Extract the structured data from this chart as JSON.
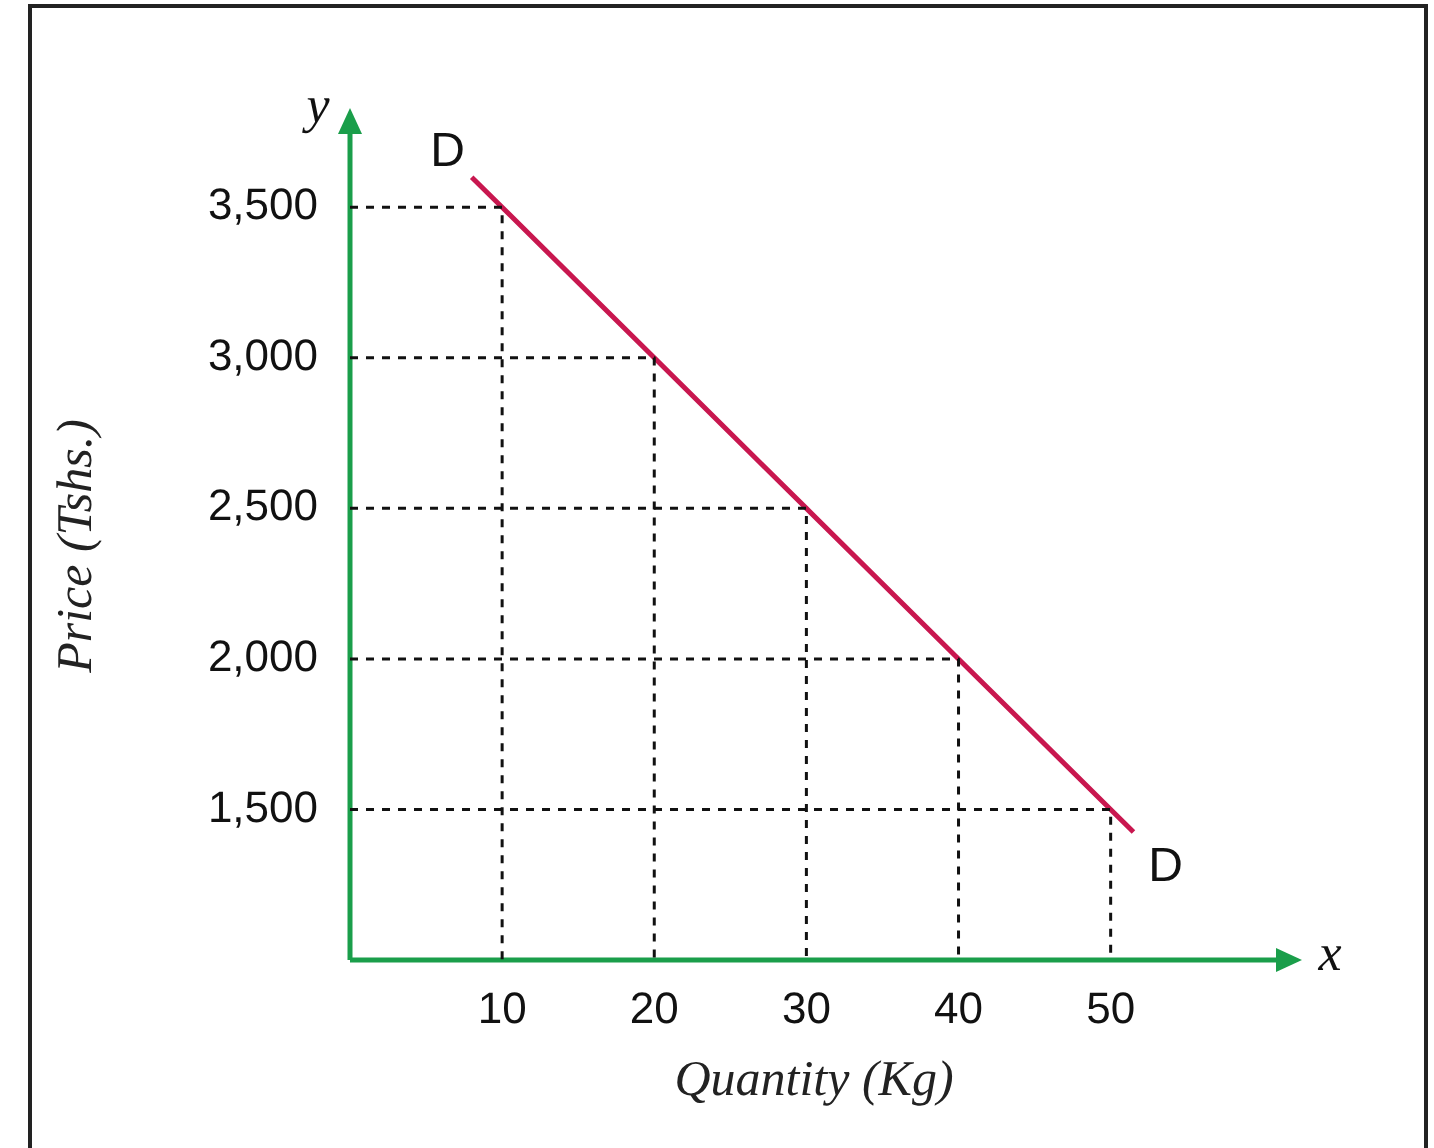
{
  "chart_data": {
    "type": "line",
    "xlabel": "Quantity (Kg)",
    "ylabel": "Price (Tshs.)",
    "series": [
      {
        "color": "#111111",
        "line_style": "dashed",
        "x": [
          0,
          10,
          10
        ],
        "values": [
          3500,
          3500,
          1000
        ]
      },
      {
        "color": "#111111",
        "line_style": "dashed",
        "x": [
          0,
          20,
          20
        ],
        "values": [
          3000,
          3000,
          1000
        ]
      },
      {
        "color": "#111111",
        "line_style": "dashed",
        "x": [
          0,
          30,
          30
        ],
        "values": [
          2500,
          2500,
          1000
        ]
      },
      {
        "color": "#111111",
        "line_style": "dashed",
        "x": [
          0,
          40,
          40
        ],
        "values": [
          2000,
          2000,
          1000
        ]
      },
      {
        "color": "#111111",
        "line_style": "dashed",
        "x": [
          0,
          50,
          50
        ],
        "values": [
          1500,
          1500,
          1000
        ]
      },
      {
        "color": "#c8174f",
        "x": [
          8,
          10,
          20,
          30,
          40,
          50,
          51.5
        ],
        "values": [
          3600,
          3500,
          3000,
          2500,
          2000,
          1500,
          1425
        ]
      }
    ],
    "xlim": [
      0,
      61
    ],
    "ylim": [
      1000,
      3750
    ],
    "xticks": [
      10,
      20,
      30,
      40,
      50
    ],
    "yticks": [
      {
        "value": 1500,
        "label": "1,500"
      },
      {
        "value": 2000,
        "label": "2,000"
      },
      {
        "value": 2500,
        "label": "2,500"
      },
      {
        "value": 3000,
        "label": "3,000"
      },
      {
        "value": 3500,
        "label": "3,500"
      }
    ],
    "legend": false,
    "marker": "none",
    "line_style": "solid",
    "annotations": [
      "y",
      "x",
      {
        "text": "D",
        "x": 8,
        "y": 3600
      },
      {
        "text": "D",
        "x": 51.5,
        "y": 1425
      }
    ]
  }
}
